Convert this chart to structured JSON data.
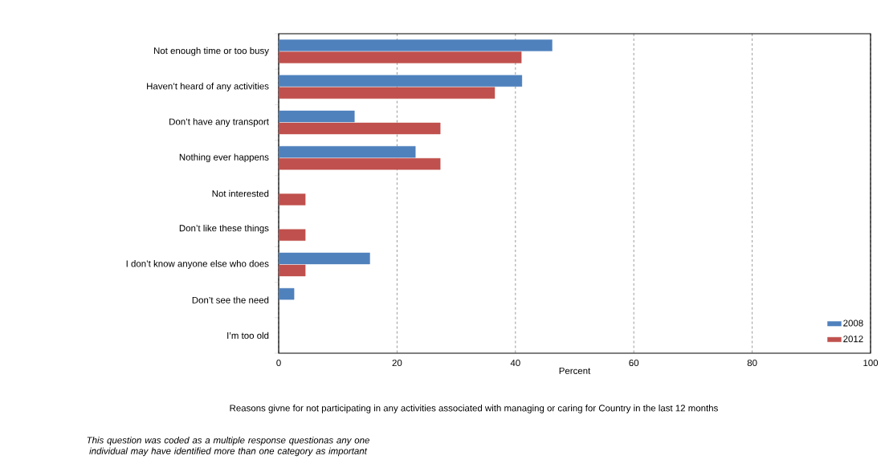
{
  "chart_data": {
    "type": "bar",
    "orientation": "horizontal",
    "categories": [
      "Not enough time or too busy",
      "Haven’t heard of any activities",
      "Don’t have any transport",
      "Nothing ever happens",
      "Not interested",
      "Don’t like these things",
      "I don’t know anyone else who does",
      "Don’t see the need",
      "I’m too old"
    ],
    "series": [
      {
        "name": "2008",
        "color": "#4f81bd",
        "values": [
          46.2,
          41.1,
          12.8,
          23.1,
          null,
          null,
          15.4,
          2.6,
          null
        ]
      },
      {
        "name": "2012",
        "color": "#c0504d",
        "values": [
          41.0,
          36.5,
          27.3,
          27.3,
          4.5,
          4.5,
          4.5,
          null,
          null
        ]
      }
    ],
    "xlim": [
      0,
      100
    ],
    "xticks": [
      0,
      20,
      40,
      60,
      80,
      100
    ],
    "xlabel": "Percent",
    "grid": "x",
    "legend": "bottom right",
    "annotations": [
      "Reasons givne for not participating in any activities associated with managing or caring for Country in the last 12 months",
      "This question was coded as a multiple response questionas any one individual may have identified more than one category as important"
    ]
  }
}
